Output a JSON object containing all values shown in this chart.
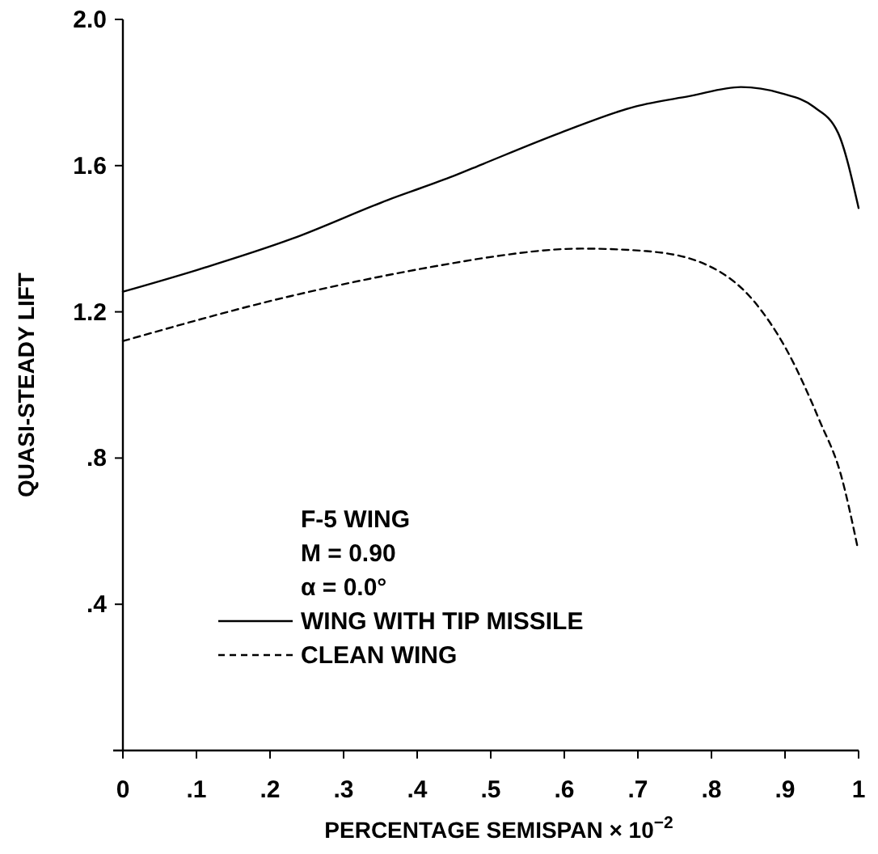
{
  "chart_data": {
    "type": "line",
    "xlabel": "PERCENTAGE SEMISPAN × 10$^{−2}$",
    "ylabel": "QUASI-STEADY LIFT",
    "xlim": [
      0,
      1
    ],
    "ylim": [
      0,
      2
    ],
    "xticks": [
      {
        "value": 0,
        "label": "0"
      },
      {
        "value": 0.1,
        "label": ".1"
      },
      {
        "value": 0.2,
        "label": ".2"
      },
      {
        "value": 0.3,
        "label": ".3"
      },
      {
        "value": 0.4,
        "label": ".4"
      },
      {
        "value": 0.5,
        "label": ".5"
      },
      {
        "value": 0.6,
        "label": ".6"
      },
      {
        "value": 0.7,
        "label": ".7"
      },
      {
        "value": 0.8,
        "label": ".8"
      },
      {
        "value": 0.9,
        "label": ".9"
      },
      1
    ],
    "yticks": [
      {
        "value": 0.4,
        "label": ".4"
      },
      {
        "value": 0.8,
        "label": ".8"
      },
      {
        "value": 1.2,
        "label": "1.2"
      },
      {
        "value": 1.6,
        "label": "1.6"
      },
      {
        "value": 2,
        "label": "2.0"
      }
    ],
    "annotations": [
      "F-5 WING",
      "M = 0.90",
      "α = 0.0°"
    ],
    "legend": "bottom left",
    "grid": false,
    "series": [
      {
        "name": "WING WITH TIP MISSILE",
        "color": "#000000",
        "line_style": "solid",
        "x": [
          0,
          0.1,
          0.23,
          0.36,
          0.45,
          0.49,
          0.595,
          0.697,
          0.77,
          0.84,
          0.895,
          0.939,
          0.972,
          1.0
        ],
        "values": [
          1.255,
          1.314,
          1.4,
          1.506,
          1.572,
          1.605,
          1.69,
          1.762,
          1.79,
          1.815,
          1.798,
          1.761,
          1.69,
          1.484
        ]
      },
      {
        "name": "CLEAN WING",
        "color": "#000000",
        "line_style": "dashed",
        "x": [
          0,
          0.23,
          0.448,
          0.49,
          0.624,
          0.712,
          0.793,
          0.859,
          0.903,
          0.947,
          0.976,
          0.998
        ],
        "values": [
          1.12,
          1.244,
          1.333,
          1.347,
          1.373,
          1.366,
          1.329,
          1.226,
          1.093,
          0.902,
          0.754,
          0.562
        ]
      }
    ]
  }
}
